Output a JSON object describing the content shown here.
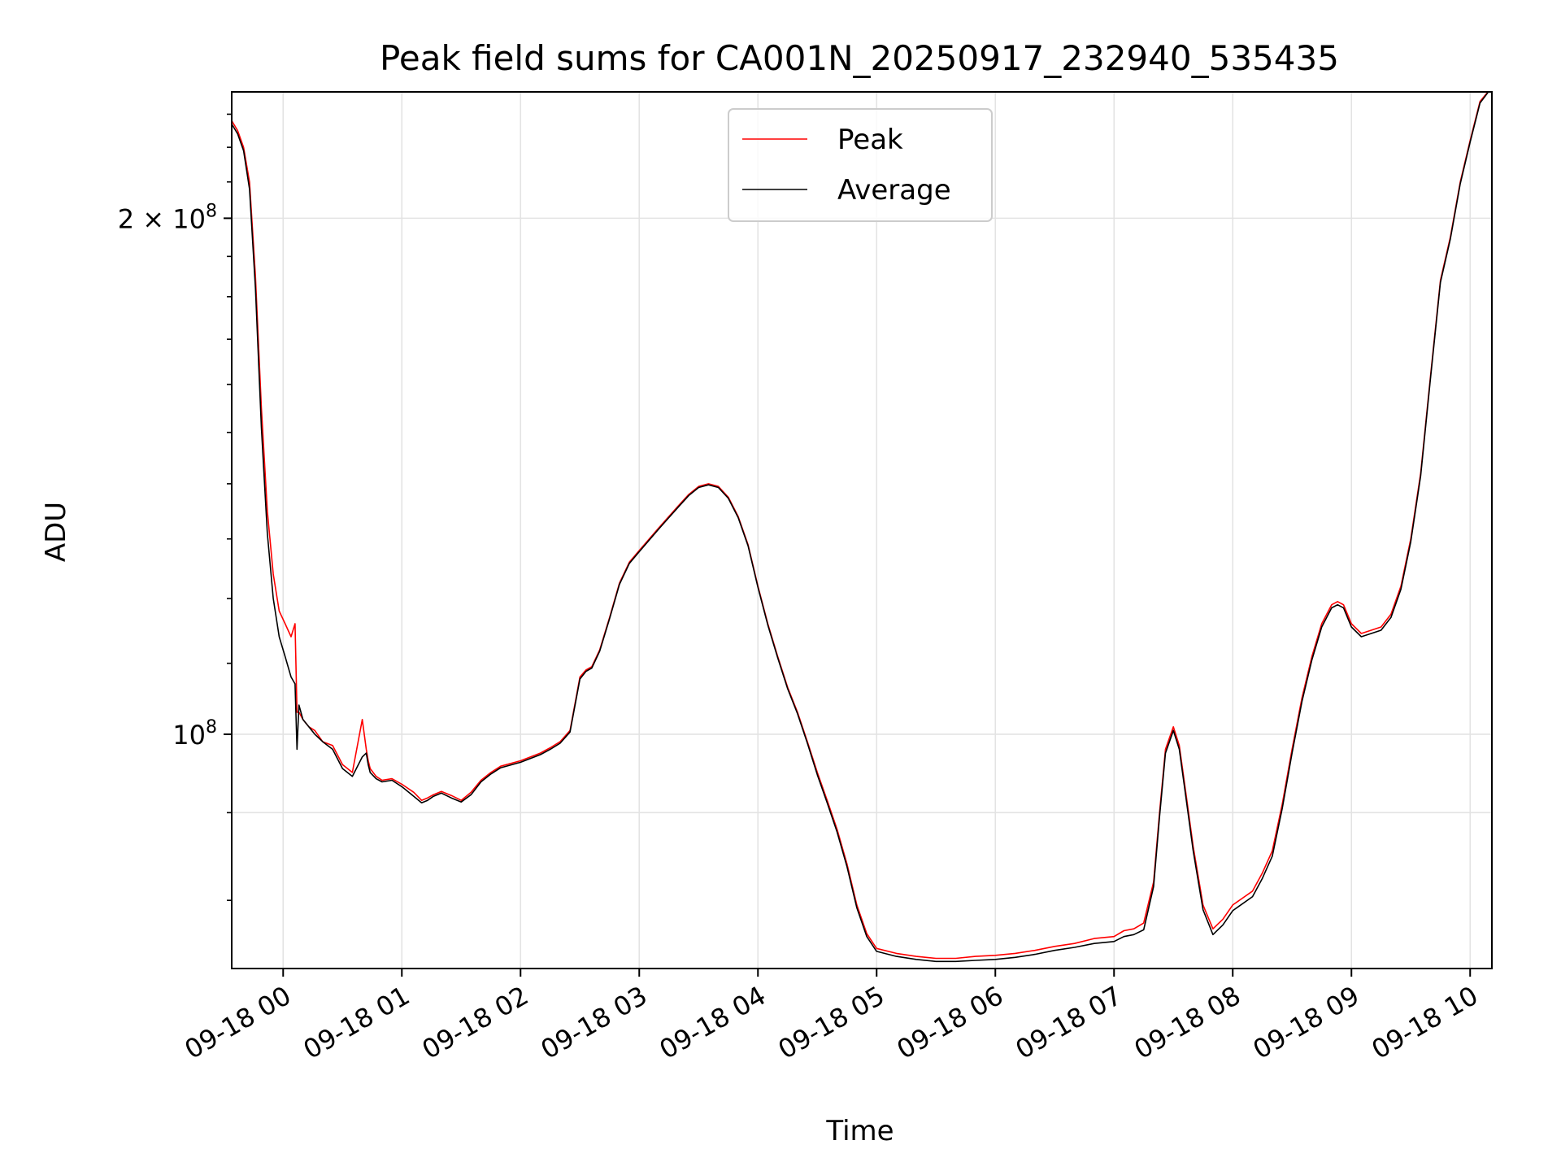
{
  "chart_data": {
    "type": "line",
    "title": "Peak field sums for CA001N_20250917_232940_535435",
    "xlabel": "Time",
    "ylabel": "ADU",
    "x_ticks": [
      "09-18 00",
      "09-18 01",
      "09-18 02",
      "09-18 03",
      "09-18 04",
      "09-18 05",
      "09-18 06",
      "09-18 07",
      "09-18 08",
      "09-18 09",
      "09-18 10"
    ],
    "y_scale": "log",
    "y_ticks": [
      {
        "value": 100000000,
        "base": "10",
        "exp": "8",
        "mantissa": ""
      },
      {
        "value": 200000000,
        "base": "10",
        "exp": "8",
        "mantissa": "2"
      }
    ],
    "y_tick_times": "×",
    "xlim": [
      "2025-09-17 23:34",
      "2025-09-18 10:11"
    ],
    "ylim": [
      73000000,
      237000000
    ],
    "grid": true,
    "legend_position": "upper center",
    "series": [
      {
        "name": "Peak",
        "color": "#ff0000",
        "x": [
          "23:34",
          "23:37",
          "23:40",
          "23:43",
          "23:46",
          "23:49",
          "23:52",
          "23:55",
          "23:58",
          "00:01",
          "00:04",
          "00:06",
          "00:07",
          "00:08",
          "00:10",
          "00:13",
          "00:16",
          "00:20",
          "00:25",
          "00:30",
          "00:35",
          "00:40",
          "00:42",
          "00:43",
          "00:44",
          "00:47",
          "00:50",
          "00:55",
          "01:00",
          "01:06",
          "01:10",
          "01:13",
          "01:16",
          "01:20",
          "01:25",
          "01:30",
          "01:35",
          "01:40",
          "01:45",
          "01:50",
          "02:00",
          "02:10",
          "02:15",
          "02:20",
          "02:25",
          "02:30",
          "02:33",
          "02:36",
          "02:40",
          "02:45",
          "02:50",
          "02:55",
          "03:00",
          "03:10",
          "03:15",
          "03:20",
          "03:25",
          "03:30",
          "03:35",
          "03:40",
          "03:45",
          "03:50",
          "03:55",
          "04:00",
          "04:05",
          "04:10",
          "04:15",
          "04:20",
          "04:25",
          "04:30",
          "04:35",
          "04:40",
          "04:45",
          "04:50",
          "04:55",
          "05:00",
          "05:10",
          "05:20",
          "05:30",
          "05:40",
          "05:50",
          "06:00",
          "06:10",
          "06:20",
          "06:30",
          "06:40",
          "06:50",
          "07:00",
          "07:05",
          "07:10",
          "07:15",
          "07:20",
          "07:23",
          "07:26",
          "07:30",
          "07:33",
          "07:36",
          "07:40",
          "07:45",
          "07:50",
          "07:55",
          "08:00",
          "08:10",
          "08:15",
          "08:20",
          "08:25",
          "08:30",
          "08:35",
          "08:40",
          "08:45",
          "08:50",
          "08:53",
          "08:56",
          "09:00",
          "09:05",
          "09:10",
          "09:15",
          "09:20",
          "09:25",
          "09:30",
          "09:35",
          "09:40",
          "09:45",
          "09:50",
          "09:55",
          "10:00",
          "10:05",
          "10:09"
        ],
        "y": [
          228000000,
          225000000,
          220000000,
          210000000,
          185000000,
          155000000,
          135000000,
          124000000,
          118000000,
          116000000,
          114000000,
          116000000,
          103000000,
          103000000,
          102000000,
          101000000,
          100500000,
          99000000,
          98500000,
          96000000,
          95000000,
          102000000,
          98000000,
          96500000,
          95500000,
          94500000,
          94000000,
          94200000,
          93500000,
          92500000,
          91500000,
          91800000,
          92200000,
          92600000,
          92100000,
          91500000,
          92500000,
          94000000,
          95000000,
          95800000,
          96500000,
          97500000,
          98200000,
          99000000,
          100500000,
          108000000,
          109000000,
          109500000,
          112000000,
          117000000,
          122500000,
          126000000,
          128000000,
          132000000,
          134000000,
          136000000,
          138000000,
          139500000,
          140000000,
          139500000,
          137500000,
          134000000,
          129000000,
          122000000,
          116000000,
          111000000,
          106500000,
          103000000,
          99000000,
          95000000,
          91500000,
          88000000,
          84000000,
          79500000,
          76500000,
          75000000,
          74500000,
          74200000,
          74000000,
          74000000,
          74200000,
          74300000,
          74500000,
          74800000,
          75200000,
          75500000,
          76000000,
          76200000,
          76800000,
          77000000,
          77600000,
          82000000,
          90000000,
          98000000,
          101000000,
          98500000,
          93000000,
          86000000,
          79500000,
          77000000,
          78000000,
          79500000,
          81000000,
          83000000,
          85500000,
          91000000,
          98000000,
          105000000,
          111000000,
          116000000,
          119000000,
          119500000,
          119000000,
          116000000,
          114500000,
          115000000,
          115500000,
          117500000,
          122000000,
          130000000,
          142000000,
          162000000,
          184000000,
          195000000,
          210000000,
          222000000,
          234000000,
          237000000
        ]
      },
      {
        "name": "Average",
        "color": "#000000",
        "x": [
          "23:34",
          "23:37",
          "23:40",
          "23:43",
          "23:46",
          "23:49",
          "23:52",
          "23:55",
          "23:58",
          "00:01",
          "00:04",
          "00:06",
          "00:07",
          "00:08",
          "00:10",
          "00:13",
          "00:16",
          "00:20",
          "00:25",
          "00:30",
          "00:35",
          "00:40",
          "00:42",
          "00:43",
          "00:44",
          "00:47",
          "00:50",
          "00:55",
          "01:00",
          "01:06",
          "01:10",
          "01:13",
          "01:16",
          "01:20",
          "01:25",
          "01:30",
          "01:35",
          "01:40",
          "01:45",
          "01:50",
          "02:00",
          "02:10",
          "02:15",
          "02:20",
          "02:25",
          "02:30",
          "02:33",
          "02:36",
          "02:40",
          "02:45",
          "02:50",
          "02:55",
          "03:00",
          "03:10",
          "03:15",
          "03:20",
          "03:25",
          "03:30",
          "03:35",
          "03:40",
          "03:45",
          "03:50",
          "03:55",
          "04:00",
          "04:05",
          "04:10",
          "04:15",
          "04:20",
          "04:25",
          "04:30",
          "04:35",
          "04:40",
          "04:45",
          "04:50",
          "04:55",
          "05:00",
          "05:10",
          "05:20",
          "05:30",
          "05:40",
          "05:50",
          "06:00",
          "06:10",
          "06:20",
          "06:30",
          "06:40",
          "06:50",
          "07:00",
          "07:05",
          "07:10",
          "07:15",
          "07:20",
          "07:23",
          "07:26",
          "07:30",
          "07:33",
          "07:36",
          "07:40",
          "07:45",
          "07:50",
          "07:55",
          "08:00",
          "08:10",
          "08:15",
          "08:20",
          "08:25",
          "08:30",
          "08:35",
          "08:40",
          "08:45",
          "08:50",
          "08:53",
          "08:56",
          "09:00",
          "09:05",
          "09:10",
          "09:15",
          "09:20",
          "09:25",
          "09:30",
          "09:35",
          "09:40",
          "09:45",
          "09:50",
          "09:55",
          "10:00",
          "10:05",
          "10:09"
        ],
        "y": [
          227000000,
          224000000,
          219000000,
          208000000,
          182000000,
          151000000,
          131000000,
          120000000,
          114000000,
          111000000,
          108000000,
          107000000,
          98000000,
          104000000,
          102000000,
          101000000,
          100000000,
          99000000,
          98000000,
          95500000,
          94500000,
          97000000,
          97500000,
          96000000,
          95000000,
          94200000,
          93800000,
          94000000,
          93200000,
          92000000,
          91200000,
          91500000,
          92000000,
          92400000,
          91800000,
          91300000,
          92200000,
          93800000,
          94800000,
          95600000,
          96300000,
          97300000,
          98000000,
          98800000,
          100300000,
          107700000,
          108800000,
          109300000,
          111800000,
          116800000,
          122300000,
          125800000,
          127800000,
          131800000,
          133800000,
          135800000,
          137800000,
          139300000,
          139800000,
          139300000,
          137300000,
          133800000,
          128800000,
          121800000,
          115800000,
          110800000,
          106300000,
          102800000,
          98800000,
          94700000,
          91200000,
          87700000,
          83700000,
          79200000,
          76200000,
          74700000,
          74200000,
          73900000,
          73700000,
          73700000,
          73800000,
          73900000,
          74100000,
          74400000,
          74800000,
          75100000,
          75500000,
          75700000,
          76200000,
          76400000,
          76900000,
          81500000,
          89500000,
          97500000,
          100500000,
          98000000,
          92500000,
          85500000,
          79000000,
          76400000,
          77400000,
          78900000,
          80400000,
          82400000,
          84900000,
          90500000,
          97500000,
          104500000,
          110500000,
          115500000,
          118500000,
          119000000,
          118500000,
          115500000,
          114000000,
          114500000,
          115000000,
          117000000,
          121500000,
          129500000,
          141500000,
          161500000,
          183500000,
          194500000,
          209500000,
          221500000,
          233500000,
          236800000
        ]
      }
    ]
  }
}
